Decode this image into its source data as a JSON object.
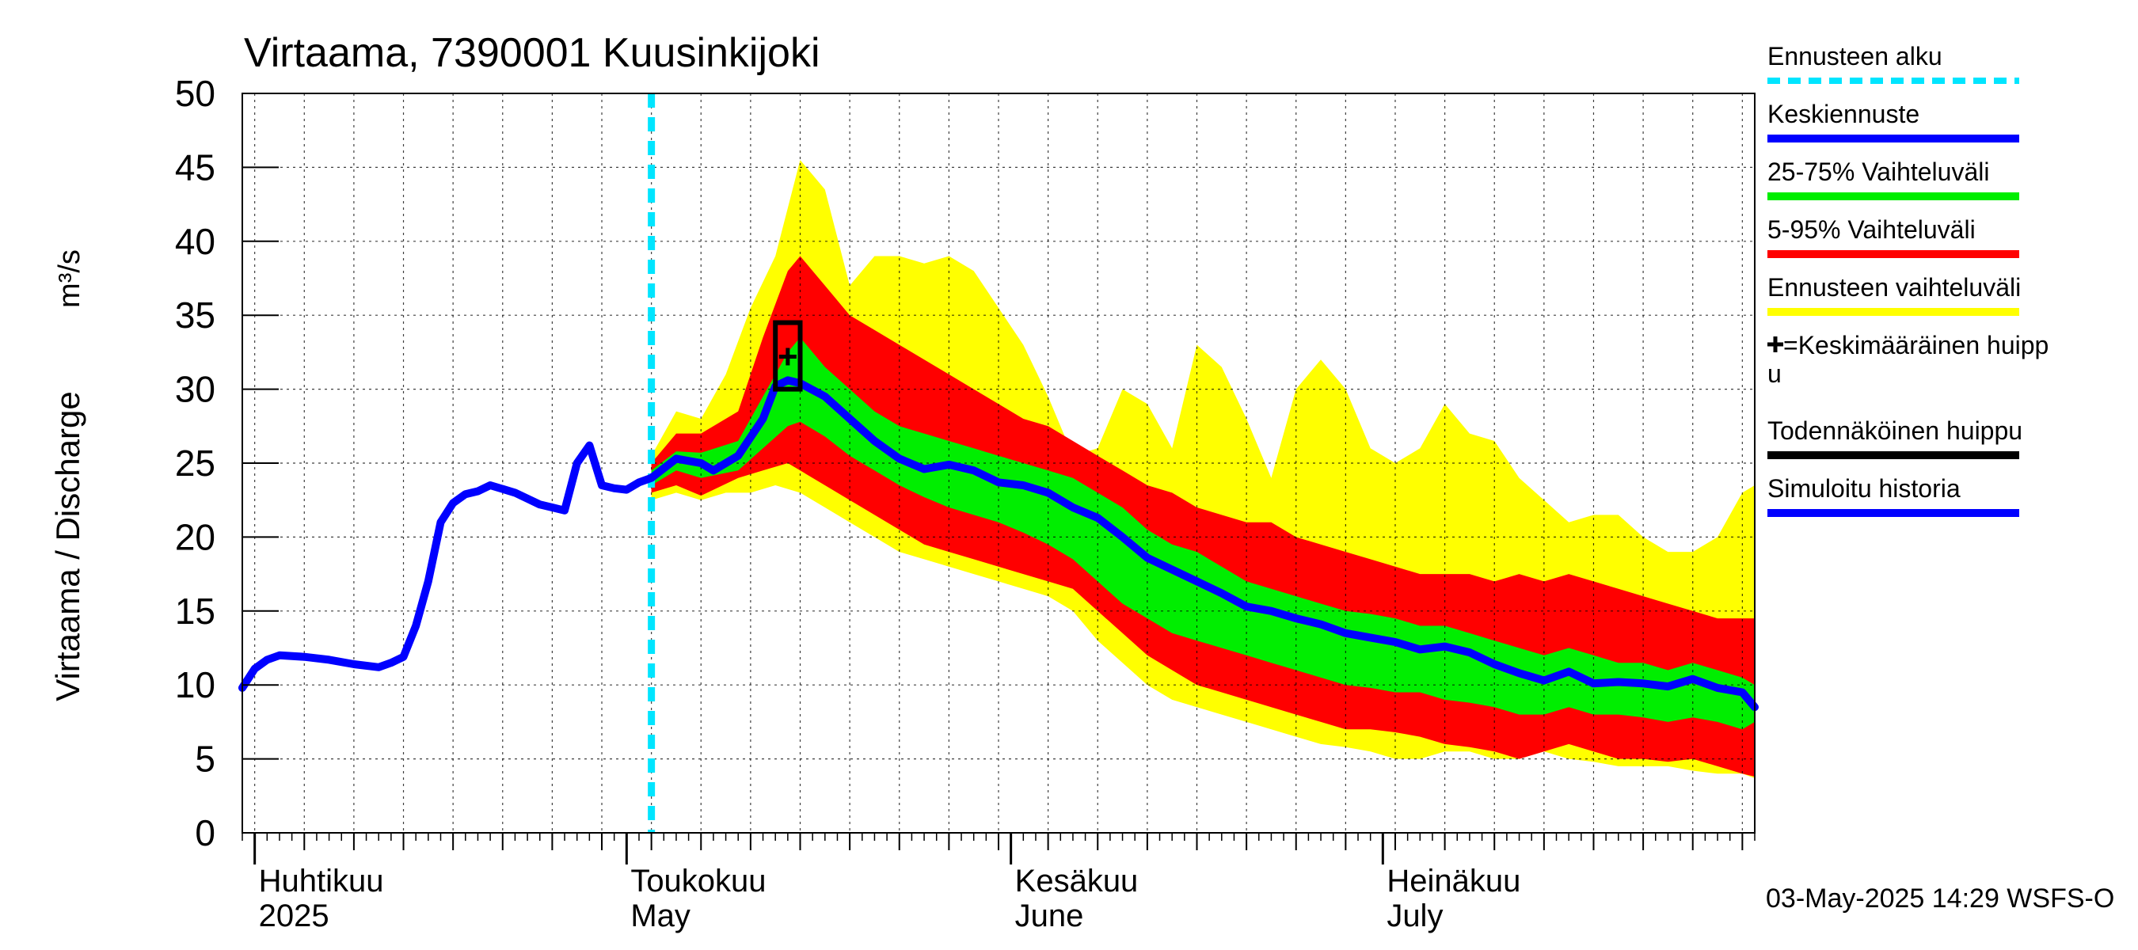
{
  "chart_data": {
    "type": "area",
    "title": "Virtaama, 7390001 Kuusinkijoki",
    "ylabel": "Virtaama / Discharge",
    "yunit": "m³/s",
    "ylim": [
      0,
      50
    ],
    "yticks": [
      0,
      5,
      10,
      15,
      20,
      25,
      30,
      35,
      40,
      45,
      50
    ],
    "x_range": [
      "2025-03-31",
      "2025-07-31"
    ],
    "grid": true,
    "legend_position": "right",
    "month_labels": [
      {
        "date": "2025-04-01",
        "fi": "Huhtikuu",
        "en": "2025"
      },
      {
        "date": "2025-05-01",
        "fi": "Toukokuu",
        "en": "May"
      },
      {
        "date": "2025-06-01",
        "fi": "Kesäkuu",
        "en": "June"
      },
      {
        "date": "2025-07-01",
        "fi": "Heinäkuu",
        "en": "July"
      }
    ],
    "forecast_start": "2025-05-03",
    "colors": {
      "forecast_start": "#00e5ff",
      "median": "#0000ff",
      "range_25_75": "#00ee00",
      "range_5_95": "#ff0000",
      "range_full": "#ffff00",
      "peak": "#000000",
      "history": "#0000ff"
    },
    "series": [
      {
        "name": "Simuloitu historia",
        "x": [
          "2025-03-31",
          "2025-04-01",
          "2025-04-02",
          "2025-04-03",
          "2025-04-05",
          "2025-04-07",
          "2025-04-09",
          "2025-04-11",
          "2025-04-12",
          "2025-04-13",
          "2025-04-14",
          "2025-04-15",
          "2025-04-16",
          "2025-04-17",
          "2025-04-18",
          "2025-04-19",
          "2025-04-20",
          "2025-04-22",
          "2025-04-24",
          "2025-04-25",
          "2025-04-26",
          "2025-04-27",
          "2025-04-28",
          "2025-04-29",
          "2025-04-30",
          "2025-05-01",
          "2025-05-02",
          "2025-05-03"
        ],
        "values": [
          9.8,
          11.1,
          11.7,
          12.0,
          11.9,
          11.7,
          11.4,
          11.2,
          11.5,
          11.9,
          14.0,
          17.0,
          21.0,
          22.3,
          22.9,
          23.1,
          23.5,
          23.0,
          22.2,
          22.0,
          21.8,
          25.0,
          26.2,
          23.5,
          23.3,
          23.2,
          23.7,
          24.0
        ]
      },
      {
        "name": "Keskiennuste",
        "x": [
          "2025-05-03",
          "2025-05-05",
          "2025-05-07",
          "2025-05-08",
          "2025-05-10",
          "2025-05-12",
          "2025-05-13",
          "2025-05-14",
          "2025-05-15",
          "2025-05-17",
          "2025-05-19",
          "2025-05-21",
          "2025-05-23",
          "2025-05-25",
          "2025-05-27",
          "2025-05-29",
          "2025-05-31",
          "2025-06-02",
          "2025-06-04",
          "2025-06-06",
          "2025-06-08",
          "2025-06-10",
          "2025-06-12",
          "2025-06-14",
          "2025-06-16",
          "2025-06-18",
          "2025-06-20",
          "2025-06-22",
          "2025-06-24",
          "2025-06-26",
          "2025-06-28",
          "2025-06-30",
          "2025-07-02",
          "2025-07-04",
          "2025-07-06",
          "2025-07-08",
          "2025-07-10",
          "2025-07-12",
          "2025-07-14",
          "2025-07-16",
          "2025-07-18",
          "2025-07-20",
          "2025-07-22",
          "2025-07-24",
          "2025-07-26",
          "2025-07-28",
          "2025-07-30",
          "2025-07-31"
        ],
        "values": [
          24.0,
          25.3,
          25.0,
          24.5,
          25.5,
          28.0,
          30.2,
          30.6,
          30.4,
          29.5,
          28.0,
          26.5,
          25.3,
          24.6,
          24.9,
          24.5,
          23.7,
          23.5,
          23.0,
          22.0,
          21.3,
          20.0,
          18.6,
          17.8,
          17.0,
          16.2,
          15.3,
          15.0,
          14.5,
          14.1,
          13.5,
          13.2,
          12.9,
          12.4,
          12.6,
          12.2,
          11.4,
          10.8,
          10.3,
          10.9,
          10.1,
          10.2,
          10.1,
          9.9,
          10.4,
          9.8,
          9.5,
          8.5
        ]
      },
      {
        "name": "25-75% Vaihteluväli",
        "x": [
          "2025-05-03",
          "2025-05-05",
          "2025-05-07",
          "2025-05-10",
          "2025-05-12",
          "2025-05-14",
          "2025-05-15",
          "2025-05-17",
          "2025-05-19",
          "2025-05-21",
          "2025-05-23",
          "2025-05-25",
          "2025-05-27",
          "2025-05-29",
          "2025-05-31",
          "2025-06-02",
          "2025-06-04",
          "2025-06-06",
          "2025-06-08",
          "2025-06-10",
          "2025-06-12",
          "2025-06-14",
          "2025-06-16",
          "2025-06-18",
          "2025-06-20",
          "2025-06-22",
          "2025-06-24",
          "2025-06-26",
          "2025-06-28",
          "2025-06-30",
          "2025-07-02",
          "2025-07-04",
          "2025-07-06",
          "2025-07-08",
          "2025-07-10",
          "2025-07-12",
          "2025-07-14",
          "2025-07-16",
          "2025-07-18",
          "2025-07-20",
          "2025-07-22",
          "2025-07-24",
          "2025-07-26",
          "2025-07-28",
          "2025-07-30",
          "2025-07-31"
        ],
        "upper": [
          24.5,
          25.8,
          25.7,
          26.5,
          29.5,
          32.5,
          33.5,
          31.5,
          30.0,
          28.5,
          27.5,
          27.0,
          26.5,
          26.0,
          25.5,
          25.0,
          24.5,
          24.0,
          23.0,
          22.0,
          20.5,
          19.5,
          19.0,
          18.0,
          17.0,
          16.5,
          16.0,
          15.5,
          15.0,
          14.8,
          14.5,
          14.0,
          14.0,
          13.5,
          13.0,
          12.5,
          12.0,
          12.5,
          12.0,
          11.5,
          11.5,
          11.0,
          11.5,
          11.0,
          10.5,
          10.0
        ],
        "lower": [
          23.5,
          24.5,
          24.0,
          24.5,
          26.0,
          27.5,
          27.8,
          26.8,
          25.5,
          24.5,
          23.5,
          22.7,
          22.0,
          21.5,
          21.0,
          20.3,
          19.5,
          18.5,
          17.0,
          15.5,
          14.5,
          13.5,
          13.0,
          12.5,
          12.0,
          11.5,
          11.0,
          10.5,
          10.0,
          9.8,
          9.5,
          9.5,
          9.0,
          8.8,
          8.5,
          8.0,
          8.0,
          8.5,
          8.0,
          8.0,
          7.8,
          7.5,
          7.8,
          7.5,
          7.0,
          7.5
        ]
      },
      {
        "name": "5-95% Vaihteluväli",
        "x": [
          "2025-05-03",
          "2025-05-05",
          "2025-05-07",
          "2025-05-10",
          "2025-05-12",
          "2025-05-14",
          "2025-05-15",
          "2025-05-17",
          "2025-05-19",
          "2025-05-21",
          "2025-05-23",
          "2025-05-25",
          "2025-05-27",
          "2025-05-29",
          "2025-05-31",
          "2025-06-02",
          "2025-06-04",
          "2025-06-06",
          "2025-06-08",
          "2025-06-10",
          "2025-06-12",
          "2025-06-14",
          "2025-06-16",
          "2025-06-18",
          "2025-06-20",
          "2025-06-22",
          "2025-06-24",
          "2025-06-26",
          "2025-06-28",
          "2025-06-30",
          "2025-07-02",
          "2025-07-04",
          "2025-07-06",
          "2025-07-08",
          "2025-07-10",
          "2025-07-12",
          "2025-07-14",
          "2025-07-16",
          "2025-07-18",
          "2025-07-20",
          "2025-07-22",
          "2025-07-24",
          "2025-07-26",
          "2025-07-28",
          "2025-07-30",
          "2025-07-31"
        ],
        "upper": [
          25.0,
          27.0,
          27.0,
          28.5,
          33.5,
          38.0,
          39.0,
          37.0,
          35.0,
          34.0,
          33.0,
          32.0,
          31.0,
          30.0,
          29.0,
          28.0,
          27.5,
          26.5,
          25.5,
          24.5,
          23.5,
          23.0,
          22.0,
          21.5,
          21.0,
          21.0,
          20.0,
          19.5,
          19.0,
          18.5,
          18.0,
          17.5,
          17.5,
          17.5,
          17.0,
          17.5,
          17.0,
          17.5,
          17.0,
          16.5,
          16.0,
          15.5,
          15.0,
          14.5,
          14.5,
          14.5
        ],
        "lower": [
          23.0,
          23.5,
          22.8,
          24.0,
          24.5,
          25.0,
          24.5,
          23.5,
          22.5,
          21.5,
          20.5,
          19.5,
          19.0,
          18.5,
          18.0,
          17.5,
          17.0,
          16.5,
          15.0,
          13.5,
          12.0,
          11.0,
          10.0,
          9.5,
          9.0,
          8.5,
          8.0,
          7.5,
          7.0,
          7.0,
          6.8,
          6.5,
          6.0,
          5.8,
          5.5,
          5.0,
          5.5,
          6.0,
          5.5,
          5.0,
          5.0,
          4.8,
          5.0,
          4.5,
          4.0,
          3.8
        ]
      },
      {
        "name": "Ennusteen vaihteluväli",
        "x": [
          "2025-05-03",
          "2025-05-05",
          "2025-05-07",
          "2025-05-09",
          "2025-05-11",
          "2025-05-13",
          "2025-05-15",
          "2025-05-17",
          "2025-05-19",
          "2025-05-21",
          "2025-05-23",
          "2025-05-25",
          "2025-05-27",
          "2025-05-29",
          "2025-05-31",
          "2025-06-02",
          "2025-06-04",
          "2025-06-06",
          "2025-06-08",
          "2025-06-10",
          "2025-06-12",
          "2025-06-14",
          "2025-06-16",
          "2025-06-18",
          "2025-06-20",
          "2025-06-22",
          "2025-06-24",
          "2025-06-26",
          "2025-06-28",
          "2025-06-30",
          "2025-07-02",
          "2025-07-04",
          "2025-07-06",
          "2025-07-08",
          "2025-07-10",
          "2025-07-12",
          "2025-07-14",
          "2025-07-16",
          "2025-07-18",
          "2025-07-20",
          "2025-07-22",
          "2025-07-24",
          "2025-07-26",
          "2025-07-28",
          "2025-07-30",
          "2025-07-31"
        ],
        "upper": [
          25.5,
          28.5,
          28.0,
          31.0,
          35.5,
          39.0,
          45.5,
          43.5,
          37.0,
          39.0,
          39.0,
          38.5,
          39.0,
          38.0,
          35.5,
          33.0,
          29.5,
          25.5,
          26.0,
          30.0,
          29.0,
          26.0,
          33.0,
          31.5,
          28.0,
          24.0,
          30.0,
          32.0,
          30.0,
          26.0,
          25.0,
          26.0,
          29.0,
          27.0,
          26.5,
          24.0,
          22.5,
          21.0,
          21.5,
          21.5,
          20.0,
          19.0,
          19.0,
          20.0,
          23.0,
          23.5
        ],
        "lower": [
          22.5,
          23.0,
          22.5,
          23.0,
          23.0,
          23.5,
          23.0,
          22.0,
          21.0,
          20.0,
          19.0,
          18.5,
          18.0,
          17.5,
          17.0,
          16.5,
          16.0,
          15.0,
          13.0,
          11.5,
          10.0,
          9.0,
          8.5,
          8.0,
          7.5,
          7.0,
          6.5,
          6.0,
          5.8,
          5.5,
          5.0,
          5.0,
          5.5,
          5.5,
          5.0,
          5.0,
          5.5,
          5.0,
          4.8,
          4.5,
          4.5,
          4.5,
          4.2,
          4.0,
          4.0,
          3.7
        ]
      }
    ],
    "peak": {
      "date": "2025-05-14",
      "value": 32.2,
      "box_date_range": [
        "2025-05-13",
        "2025-05-15"
      ],
      "box_value_range": [
        30.0,
        34.5
      ]
    },
    "legend": [
      {
        "label": "Ennusteen alku",
        "color": "#00e5ff",
        "style": "dashed"
      },
      {
        "label": "Keskiennuste",
        "color": "#0000ff",
        "style": "solid"
      },
      {
        "label": "25-75% Vaihteluväli",
        "color": "#00ee00",
        "style": "solid"
      },
      {
        "label": "5-95% Vaihteluväli",
        "color": "#ff0000",
        "style": "solid"
      },
      {
        "label": "Ennusteen vaihteluväli",
        "color": "#ffff00",
        "style": "solid"
      },
      {
        "label": "=Keskimääräinen huipp",
        "label2": "u",
        "color": "#000000",
        "style": "plus"
      },
      {
        "label": "Todennäköinen huippu",
        "color": "#000000",
        "style": "solid"
      },
      {
        "label": "Simuloitu historia",
        "color": "#0000ff",
        "style": "solid"
      }
    ],
    "footer": "03-May-2025 14:29 WSFS-O"
  }
}
